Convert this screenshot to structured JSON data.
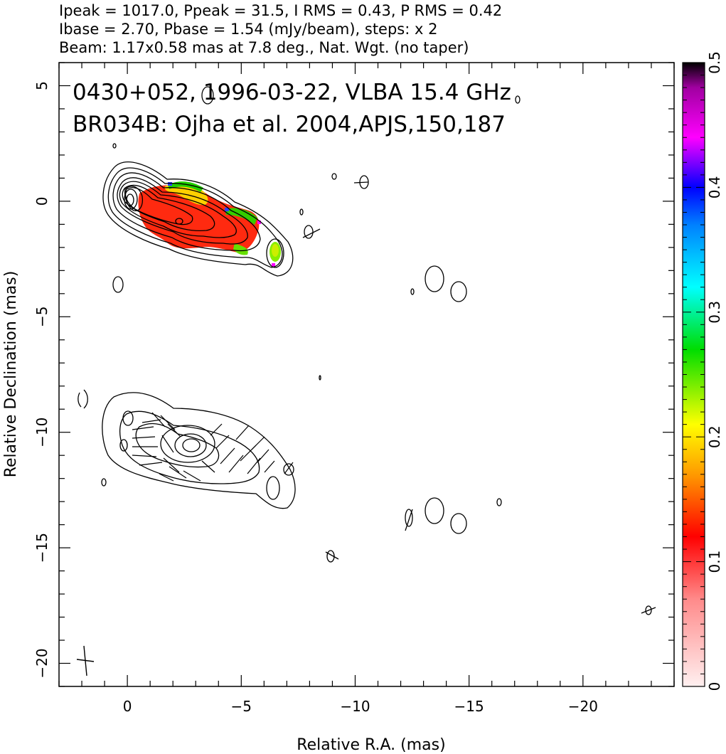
{
  "header": {
    "line1": "Ipeak = 1017.0, Ppeak = 31.5, I RMS = 0.43, P RMS = 0.42",
    "line2": "Ibase = 2.70, Pbase = 1.54 (mJy/beam), steps: x 2",
    "line3": "Beam: 1.17x0.58 mas at 7.8 deg., Nat. Wgt. (no taper)"
  },
  "chart_data": {
    "type": "heatmap",
    "annotations": [
      "0430+052, 1996-03-22, VLBA 15.4 GHz",
      "BR034B: Ojha et al. 2004,APJS,150,187"
    ],
    "xlabel": "Relative R.A. (mas)",
    "ylabel": "Relative Declination (mas)",
    "xlim": [
      3,
      -24
    ],
    "ylim": [
      -21,
      6
    ],
    "x_ticks": [
      0,
      -5,
      -10,
      -15,
      -20
    ],
    "x_tick_labels": [
      "0",
      "−5",
      "−10",
      "−15",
      "−20"
    ],
    "y_ticks": [
      5,
      0,
      -5,
      -10,
      -15,
      -20
    ],
    "y_tick_labels": [
      "5",
      "0",
      "−5",
      "−10",
      "−15",
      "−20"
    ],
    "colorbar": {
      "range": [
        0,
        0.5
      ],
      "ticks": [
        0,
        0.1,
        0.2,
        0.3,
        0.4,
        0.5
      ],
      "tick_labels": [
        "0",
        "0.1",
        "0.2",
        "0.3",
        "0.4",
        "0.5"
      ],
      "stops": [
        [
          0.0,
          "#fff0f0"
        ],
        [
          0.07,
          "#ff8a8a"
        ],
        [
          0.12,
          "#ff0000"
        ],
        [
          0.17,
          "#ff9a00"
        ],
        [
          0.21,
          "#ffff00"
        ],
        [
          0.27,
          "#00dd00"
        ],
        [
          0.32,
          "#00ffff"
        ],
        [
          0.37,
          "#0080ff"
        ],
        [
          0.4,
          "#0000ff"
        ],
        [
          0.44,
          "#ff00ff"
        ],
        [
          0.48,
          "#a000a0"
        ],
        [
          0.5,
          "#000000"
        ]
      ]
    },
    "upper_panel": {
      "core": [
        0,
        0
      ],
      "jet_direction_deg": -63,
      "contour_levels": 10
    },
    "lower_panel": {
      "core": [
        -2.8,
        -10.6
      ],
      "contour_levels": 6
    }
  }
}
